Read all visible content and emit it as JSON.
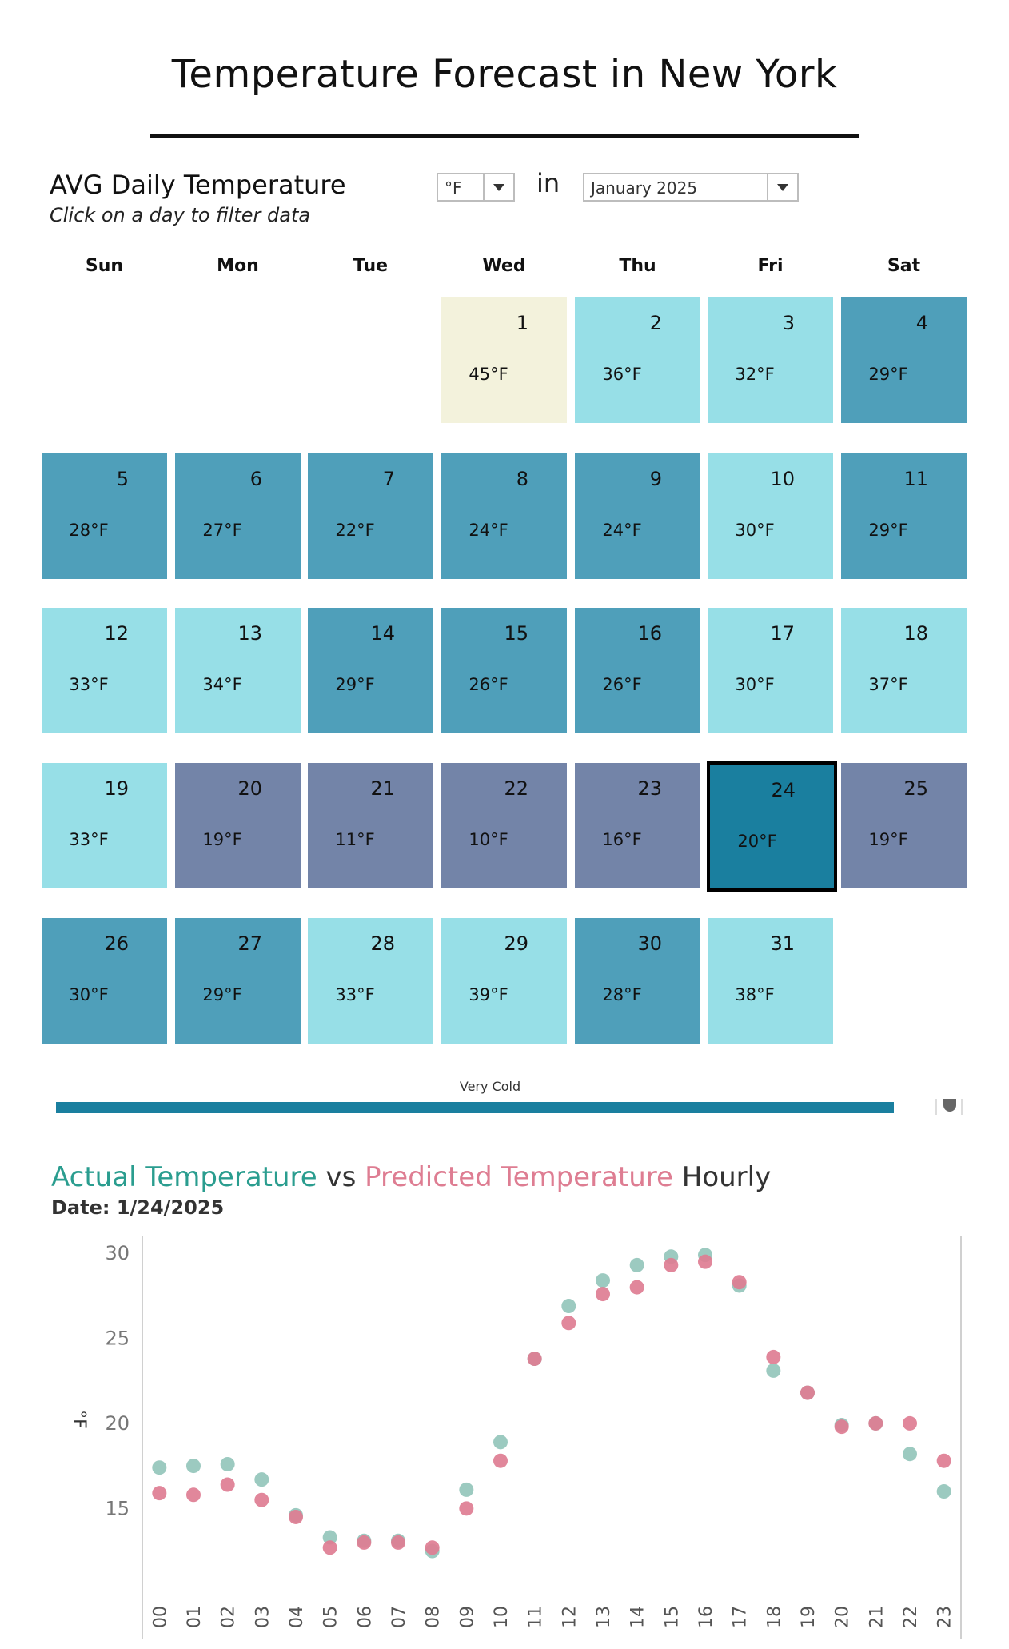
{
  "title": "Temperature Forecast in New York",
  "calendar": {
    "heading": "AVG Daily Temperature",
    "subheading": "Click on a day to filter data",
    "unit_selected": "°F",
    "in_label": "in",
    "month_selected": "January 2025",
    "weekdays": [
      "Sun",
      "Mon",
      "Tue",
      "Wed",
      "Thu",
      "Fri",
      "Sat"
    ],
    "days": [
      {
        "day": "1",
        "temp": "45°F",
        "color": "#f3f2dc"
      },
      {
        "day": "2",
        "temp": "36°F",
        "color": "#97dfe7"
      },
      {
        "day": "3",
        "temp": "32°F",
        "color": "#97dfe7"
      },
      {
        "day": "4",
        "temp": "29°F",
        "color": "#4f9fba"
      },
      {
        "day": "5",
        "temp": "28°F",
        "color": "#4f9fba"
      },
      {
        "day": "6",
        "temp": "27°F",
        "color": "#4f9fba"
      },
      {
        "day": "7",
        "temp": "22°F",
        "color": "#4f9fba"
      },
      {
        "day": "8",
        "temp": "24°F",
        "color": "#4f9fba"
      },
      {
        "day": "9",
        "temp": "24°F",
        "color": "#4f9fba"
      },
      {
        "day": "10",
        "temp": "30°F",
        "color": "#97dfe7"
      },
      {
        "day": "11",
        "temp": "29°F",
        "color": "#4f9fba"
      },
      {
        "day": "12",
        "temp": "33°F",
        "color": "#97dfe7"
      },
      {
        "day": "13",
        "temp": "34°F",
        "color": "#97dfe7"
      },
      {
        "day": "14",
        "temp": "29°F",
        "color": "#4f9fba"
      },
      {
        "day": "15",
        "temp": "26°F",
        "color": "#4f9fba"
      },
      {
        "day": "16",
        "temp": "26°F",
        "color": "#4f9fba"
      },
      {
        "day": "17",
        "temp": "30°F",
        "color": "#97dfe7"
      },
      {
        "day": "18",
        "temp": "37°F",
        "color": "#97dfe7"
      },
      {
        "day": "19",
        "temp": "33°F",
        "color": "#97dfe7"
      },
      {
        "day": "20",
        "temp": "19°F",
        "color": "#7384a8"
      },
      {
        "day": "21",
        "temp": "11°F",
        "color": "#7384a8"
      },
      {
        "day": "22",
        "temp": "10°F",
        "color": "#7384a8"
      },
      {
        "day": "23",
        "temp": "16°F",
        "color": "#7384a8"
      },
      {
        "day": "24",
        "temp": "20°F",
        "color": "#1a7f9f",
        "selected": true
      },
      {
        "day": "25",
        "temp": "19°F",
        "color": "#7384a8"
      },
      {
        "day": "26",
        "temp": "30°F",
        "color": "#4f9fba"
      },
      {
        "day": "27",
        "temp": "29°F",
        "color": "#4f9fba"
      },
      {
        "day": "28",
        "temp": "33°F",
        "color": "#97dfe7"
      },
      {
        "day": "29",
        "temp": "39°F",
        "color": "#97dfe7"
      },
      {
        "day": "30",
        "temp": "28°F",
        "color": "#4f9fba"
      },
      {
        "day": "31",
        "temp": "38°F",
        "color": "#97dfe7"
      }
    ]
  },
  "legend": {
    "label": "Very Cold",
    "color": "#1a7f9f"
  },
  "hourly": {
    "title_actual": "Actual Temperature",
    "title_vs": " vs ",
    "title_predicted": "Predicted Temperature",
    "title_hourly": " Hourly",
    "date_label": "Date: 1/24/2025"
  },
  "chart_data": {
    "type": "scatter",
    "x": [
      "00",
      "01",
      "02",
      "03",
      "04",
      "05",
      "06",
      "07",
      "08",
      "09",
      "10",
      "11",
      "12",
      "13",
      "14",
      "15",
      "16",
      "17",
      "18",
      "19",
      "20",
      "21",
      "22",
      "23"
    ],
    "series": [
      {
        "name": "Actual Temperature",
        "color": "#97c7bd",
        "values": [
          17.4,
          17.5,
          17.6,
          16.7,
          14.6,
          13.3,
          13.1,
          13.1,
          12.5,
          16.1,
          18.9,
          23.8,
          26.9,
          28.4,
          29.3,
          29.8,
          29.9,
          28.1,
          23.1,
          21.8,
          19.9,
          20.0,
          18.2,
          16.0
        ]
      },
      {
        "name": "Predicted Temperature",
        "color": "#de7d92",
        "values": [
          15.9,
          15.8,
          16.4,
          15.5,
          14.5,
          12.7,
          13.0,
          13.0,
          12.7,
          15.0,
          17.8,
          23.8,
          25.9,
          27.6,
          28.0,
          29.3,
          29.5,
          28.3,
          23.9,
          21.8,
          19.8,
          20.0,
          20.0,
          17.8
        ]
      }
    ],
    "ylabel": "°F",
    "yticks": [
      15,
      20,
      25,
      30
    ],
    "ylim": [
      10.6,
      30.8
    ],
    "grid": false
  }
}
